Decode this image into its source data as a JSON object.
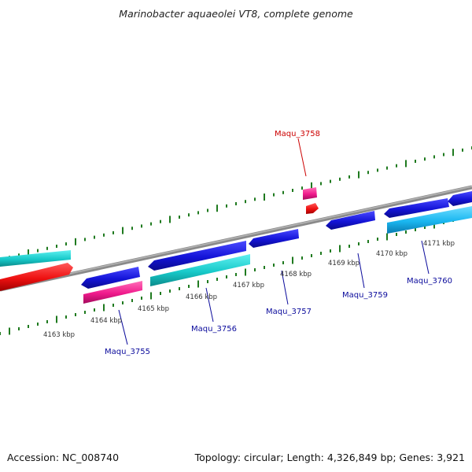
{
  "title": "Marinobacter aquaeolei VT8, complete genome",
  "footer": {
    "accession_label": "Accession: NC_008740",
    "summary": "Topology: circular; Length: 4,326,849 bp; Genes: 3,921"
  },
  "colors": {
    "backbone": "#8a8a8a",
    "ticks": "#1f7a1f",
    "label_blue": "#0b0b9c",
    "label_red": "#cc0000",
    "gene_blue": "#1414d8",
    "gene_cyan": "#17c9c9",
    "gene_skyblue": "#1ab7f0",
    "gene_red": "#ee1111",
    "gene_pink": "#f01a8c"
  },
  "scale_labels": [
    "4163 kbp",
    "4164 kbp",
    "4165 kbp",
    "4166 kbp",
    "4167 kbp",
    "4168 kbp",
    "4169 kbp",
    "4170 kbp",
    "4171 kbp"
  ],
  "gene_labels": [
    {
      "name": "Maqu_3755",
      "color": "blue"
    },
    {
      "name": "Maqu_3756",
      "color": "blue"
    },
    {
      "name": "Maqu_3757",
      "color": "blue"
    },
    {
      "name": "Maqu_3758",
      "color": "red"
    },
    {
      "name": "Maqu_3759",
      "color": "blue"
    },
    {
      "name": "Maqu_3760",
      "color": "blue"
    }
  ]
}
